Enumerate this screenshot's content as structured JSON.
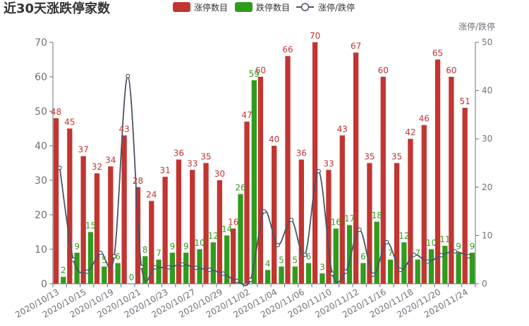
{
  "title": "近30天涨跌停家数",
  "legend": [
    {
      "label": "涨停数目",
      "color": "#c23531",
      "kind": "bar"
    },
    {
      "label": "跌停数目",
      "color": "#2f9c1c",
      "kind": "bar"
    },
    {
      "label": "涨停/跌停",
      "color": "#4a5566",
      "kind": "line"
    }
  ],
  "colors": {
    "limit_up": "#c23531",
    "limit_down": "#2f9c1c",
    "ratio_line": "#4a5566",
    "axis": "#6e7079"
  },
  "chart_data": {
    "type": "bar",
    "categories": [
      "2020/10/13",
      "2020/10/14",
      "2020/10/15",
      "2020/10/16",
      "2020/10/19",
      "2020/10/20",
      "2020/10/21",
      "2020/10/22",
      "2020/10/23",
      "2020/10/26",
      "2020/10/27",
      "2020/10/28",
      "2020/10/29",
      "2020/10/30",
      "2020/11/02",
      "2020/11/03",
      "2020/11/04",
      "2020/11/05",
      "2020/11/06",
      "2020/11/09",
      "2020/11/10",
      "2020/11/11",
      "2020/11/12",
      "2020/11/13",
      "2020/11/16",
      "2020/11/17",
      "2020/11/18",
      "2020/11/19",
      "2020/11/20",
      "2020/11/23",
      "2020/11/24"
    ],
    "x_tick_labels": [
      "2020/10/13",
      "2020/10/15",
      "2020/10/19",
      "2020/10/21",
      "2020/10/23",
      "2020/10/27",
      "2020/10/29",
      "2020/11/02",
      "2020/11/04",
      "2020/11/06",
      "2020/11/10",
      "2020/11/12",
      "2020/11/16",
      "2020/11/18",
      "2020/11/20",
      "2020/11/24"
    ],
    "series": [
      {
        "name": "涨停数目",
        "axis": "left",
        "type": "bar",
        "values": [
          48,
          45,
          37,
          32,
          34,
          43,
          28,
          24,
          31,
          36,
          33,
          35,
          30,
          16,
          47,
          60,
          40,
          66,
          36,
          70,
          33,
          43,
          67,
          35,
          60,
          35,
          42,
          46,
          65,
          60,
          51
        ]
      },
      {
        "name": "跌停数目",
        "axis": "left",
        "type": "bar",
        "values": [
          2,
          9,
          15,
          5,
          6,
          0,
          8,
          7,
          9,
          9,
          10,
          12,
          14,
          26,
          59,
          4,
          5,
          5,
          6,
          3,
          16,
          17,
          6,
          18,
          7,
          12,
          7,
          10,
          11,
          9,
          9
        ]
      },
      {
        "name": "涨停/跌停",
        "axis": "right",
        "type": "line",
        "smooth": true,
        "values": [
          24,
          5,
          2.5,
          6.4,
          5.7,
          43,
          3.5,
          3.4,
          3.4,
          4,
          3.3,
          2.9,
          2.1,
          0.6,
          0.8,
          15,
          8,
          13.2,
          6,
          23.3,
          2.1,
          2.5,
          11.2,
          1.9,
          8.6,
          2.9,
          6,
          4.6,
          5.9,
          6.7,
          5.7
        ]
      }
    ],
    "ylim_left": [
      0,
      70
    ],
    "yticks_left": [
      0,
      10,
      20,
      30,
      40,
      50,
      60,
      70
    ],
    "ylim_right": [
      0,
      50
    ],
    "yticks_right": [
      0,
      10,
      20,
      30,
      40,
      50
    ],
    "yname_right": "涨停/跌停",
    "legend_position": "top-center",
    "grid": false
  }
}
